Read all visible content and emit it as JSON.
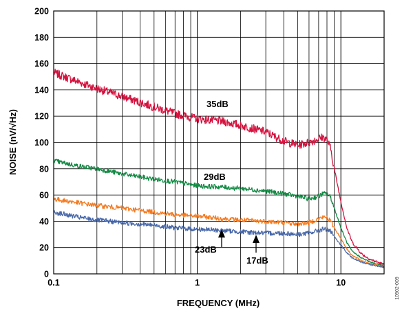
{
  "chart_data": {
    "type": "line",
    "xlabel": "FREQUENCY (MHz)",
    "ylabel": "NOISE (nV/√Hz)",
    "x_scale": "log",
    "xlim": [
      0.1,
      20
    ],
    "ylim": [
      0,
      200
    ],
    "grid": true,
    "x_ticks": [
      0.1,
      1,
      10
    ],
    "x_tick_labels": [
      "0.1",
      "1",
      "10"
    ],
    "y_ticks": [
      0,
      20,
      40,
      60,
      80,
      100,
      120,
      140,
      160,
      180,
      200
    ],
    "y_tick_labels": [
      "0",
      "20",
      "40",
      "60",
      "80",
      "100",
      "120",
      "140",
      "160",
      "180",
      "200"
    ],
    "figure_id": "10902-009",
    "series": [
      {
        "name": "35dB",
        "color": "#d4133f",
        "x": [
          0.1,
          0.15,
          0.2,
          0.3,
          0.5,
          0.7,
          1,
          1.5,
          2,
          3,
          4,
          5,
          6,
          7,
          7.5,
          8,
          8.5,
          9,
          10,
          11,
          12,
          14,
          16,
          20
        ],
        "y": [
          153,
          146,
          141,
          135,
          127,
          122,
          118,
          116,
          113,
          108,
          101,
          98,
          100,
          103,
          104,
          102,
          95,
          80,
          55,
          35,
          24,
          15,
          11,
          7
        ]
      },
      {
        "name": "29dB",
        "color": "#128a43",
        "x": [
          0.1,
          0.15,
          0.2,
          0.3,
          0.5,
          0.7,
          1,
          1.5,
          2,
          3,
          4,
          5,
          6,
          7,
          7.5,
          8,
          8.5,
          9,
          10,
          11,
          12,
          14,
          16,
          20
        ],
        "y": [
          86,
          82,
          80,
          76,
          72,
          70,
          67,
          66,
          65,
          63,
          61,
          59,
          57,
          59,
          61,
          61,
          58,
          50,
          35,
          24,
          17,
          12,
          9,
          6
        ]
      },
      {
        "name": "23dB",
        "color": "#f47a20",
        "x": [
          0.1,
          0.15,
          0.2,
          0.3,
          0.5,
          0.7,
          1,
          1.5,
          2,
          3,
          4,
          5,
          6,
          7,
          7.5,
          8,
          8.5,
          9,
          10,
          11,
          12,
          14,
          16,
          20
        ],
        "y": [
          57,
          54,
          52,
          50,
          47,
          45,
          44,
          42,
          41,
          40,
          39,
          38,
          39,
          42,
          43,
          43,
          40,
          35,
          27,
          19,
          14,
          10,
          8,
          5
        ]
      },
      {
        "name": "17dB",
        "color": "#4767a8",
        "x": [
          0.1,
          0.15,
          0.2,
          0.3,
          0.5,
          0.7,
          1,
          1.5,
          2,
          3,
          4,
          5,
          6,
          7,
          7.5,
          8,
          8.5,
          9,
          10,
          11,
          12,
          14,
          16,
          20
        ],
        "y": [
          47,
          43,
          41,
          39,
          37,
          35,
          34,
          33,
          32,
          31,
          31,
          30,
          31,
          33,
          34,
          34,
          32,
          28,
          22,
          16,
          12,
          9,
          7,
          5
        ]
      }
    ],
    "annotations": [
      "35dB",
      "29dB",
      "23dB",
      "17dB"
    ]
  }
}
